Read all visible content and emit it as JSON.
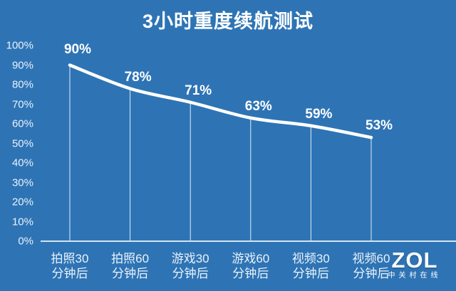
{
  "chart_data": {
    "type": "line",
    "title": "3小时重度续航测试",
    "categories": [
      "拍照30 分钟后",
      "拍照60 分钟后",
      "游戏30 分钟后",
      "游戏60 分钟后",
      "视频30 分钟后",
      "视频60 分钟后"
    ],
    "x_labels": [
      {
        "line1": "拍照30",
        "line2": "分钟后"
      },
      {
        "line1": "拍照60",
        "line2": "分钟后"
      },
      {
        "line1": "游戏30",
        "line2": "分钟后"
      },
      {
        "line1": "游戏60",
        "line2": "分钟后"
      },
      {
        "line1": "视频30",
        "line2": "分钟后"
      },
      {
        "line1": "视频60",
        "line2": "分钟后"
      }
    ],
    "values": [
      90,
      78,
      71,
      63,
      59,
      53
    ],
    "data_labels": [
      "90%",
      "78%",
      "71%",
      "63%",
      "59%",
      "53%"
    ],
    "y_ticks": [
      "100%",
      "90%",
      "80%",
      "70%",
      "60%",
      "50%",
      "40%",
      "30%",
      "20%",
      "10%",
      "0%"
    ],
    "ylim": [
      0,
      100
    ],
    "y_tick_step": 10,
    "grid": false,
    "legend_position": "none",
    "xlabel": "",
    "ylabel": ""
  },
  "watermark": {
    "logo": "ZOL",
    "text": "中关村在线"
  },
  "colors": {
    "background": "#2e74b5",
    "line": "#ffffff",
    "axis_line": "#d2e4f4",
    "drop_line": "rgba(255,255,255,0.85)",
    "title_text": "#ffffff",
    "tick_text": "#eaf2fa",
    "data_label_text": "#ffffff",
    "watermark_text": "#ffffff"
  }
}
